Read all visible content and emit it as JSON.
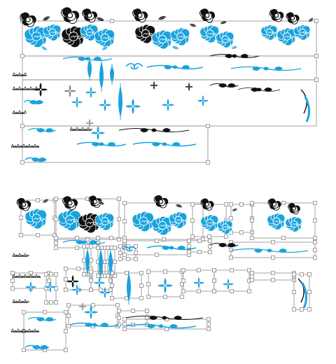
{
  "canvas": {
    "background": "#ffffff"
  },
  "colors": {
    "accent_cyan": "#19a3dd",
    "ink_black": "#111111",
    "guide_gray": "#8a8a8a",
    "handle_fill": "#ffffff"
  },
  "panels": [
    {
      "name": "top-panel-unselected",
      "handles": "corners"
    },
    {
      "name": "bottom-panel-selected",
      "handles": "all"
    }
  ],
  "icons": {
    "rose": "rose-cluster-icon",
    "swirl": "flourish-swirl-icon",
    "fleur": "fleur-ornament-icon",
    "divider": "scroll-divider-icon",
    "handle": "selection-handle-icon"
  }
}
